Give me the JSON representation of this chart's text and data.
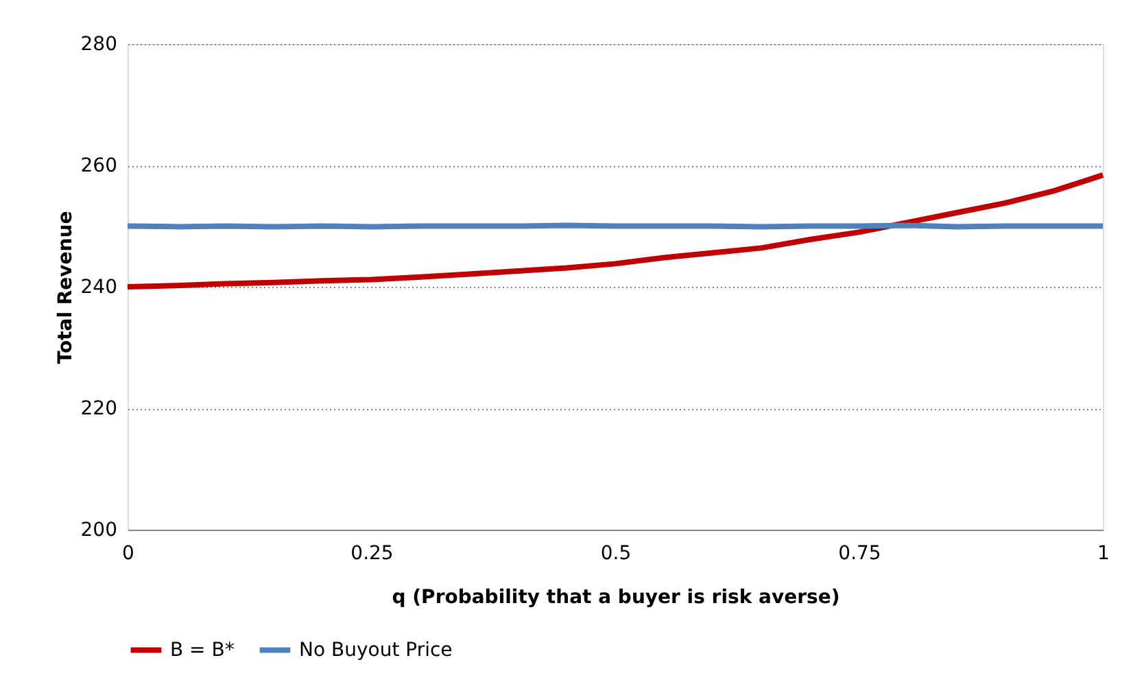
{
  "chart_data": {
    "type": "line",
    "xlabel": "q (Probability that a buyer is risk averse)",
    "ylabel": "Total Revenue",
    "x": [
      0,
      0.05,
      0.1,
      0.15,
      0.2,
      0.25,
      0.3,
      0.35,
      0.4,
      0.45,
      0.5,
      0.55,
      0.6,
      0.65,
      0.7,
      0.75,
      0.8,
      0.85,
      0.9,
      0.95,
      1
    ],
    "series": [
      {
        "name": "B = B*",
        "color": "#c00000",
        "values": [
          240,
          240.2,
          240.5,
          240.7,
          241,
          241.2,
          241.6,
          242.1,
          242.6,
          243.1,
          243.8,
          244.8,
          245.6,
          246.4,
          247.8,
          249,
          250.6,
          252.2,
          253.8,
          255.8,
          258.4
        ]
      },
      {
        "name": "No Buyout Price",
        "color": "#4f81bd",
        "values": [
          250,
          249.9,
          250,
          249.9,
          250,
          249.9,
          250,
          250,
          250,
          250.1,
          250,
          250,
          250,
          249.9,
          250,
          250,
          250.1,
          249.9,
          250,
          250,
          250
        ]
      }
    ],
    "xlim": [
      0,
      1
    ],
    "xticks": [
      0,
      0.25,
      0.5,
      0.75,
      1
    ],
    "ylim": [
      200,
      280
    ],
    "yticks": [
      200,
      220,
      240,
      260,
      280
    ],
    "grid": "y",
    "legend": "bottom",
    "marker": "none",
    "line_style": "solid"
  }
}
